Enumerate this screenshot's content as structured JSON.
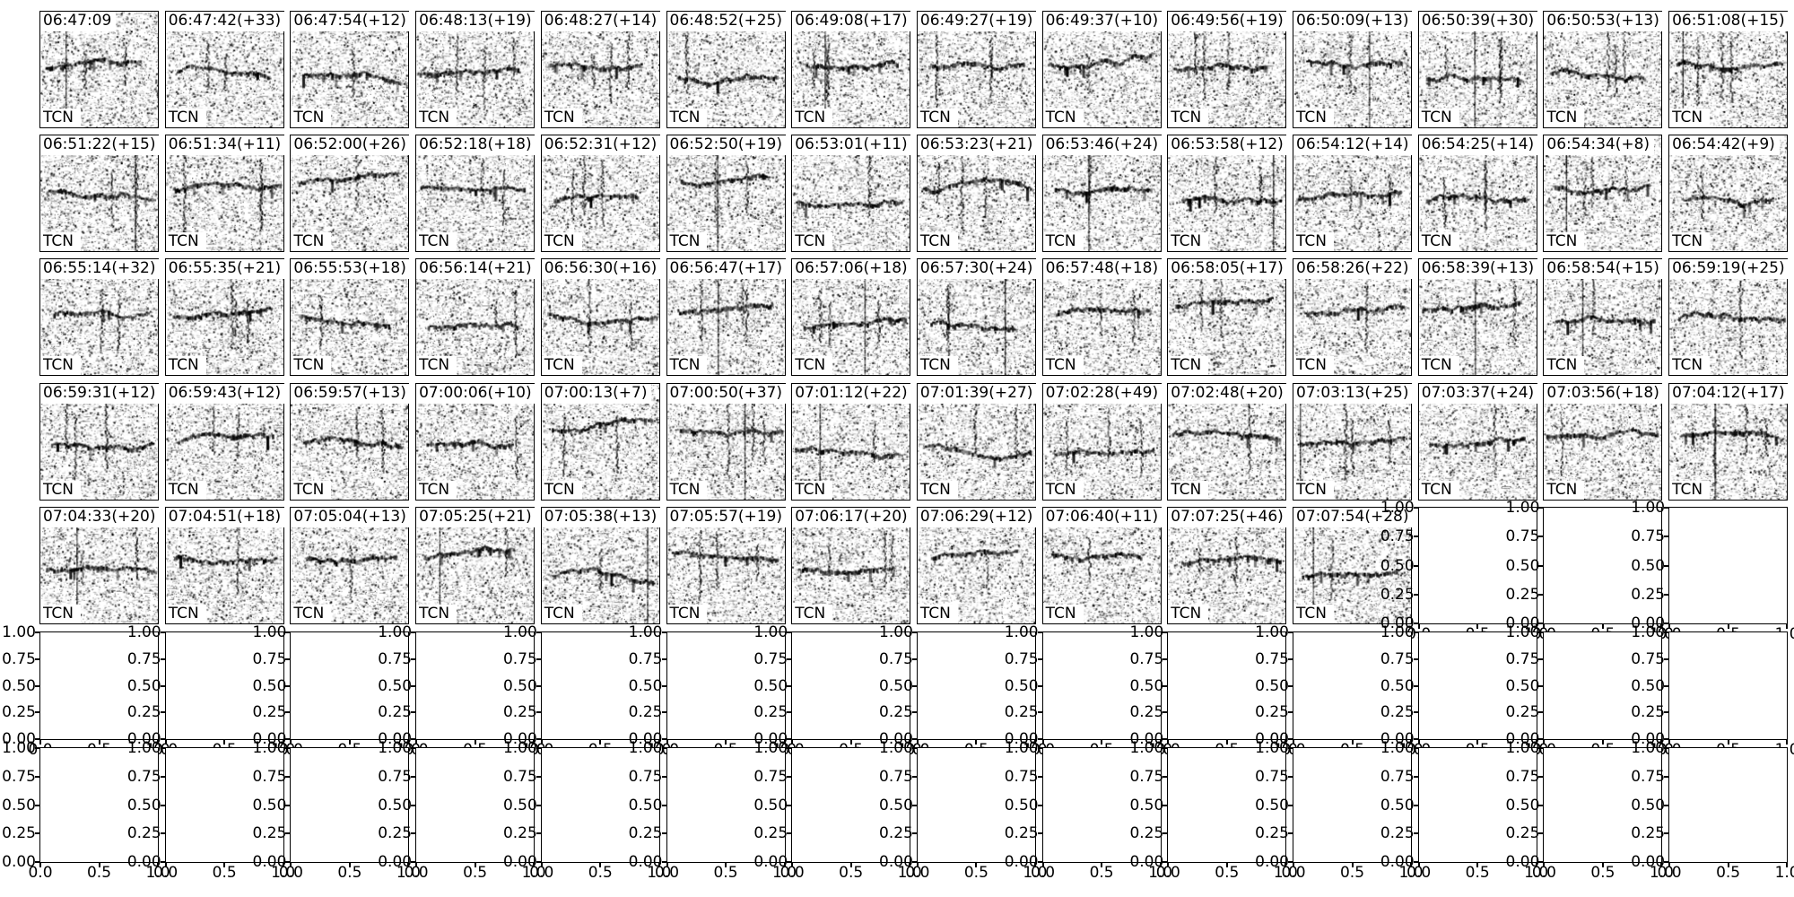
{
  "figure": {
    "background": "#ffffff",
    "text_color": "#000000",
    "model_label": "TCN",
    "grid_cols": 14,
    "grid_rows_total": 7,
    "spectrogram_rows": 5
  },
  "chart_data": {
    "type": "heatmap",
    "description": "Grid of 67 grayscale spectrogram detection thumbnails (14 columns x 5 rows, last row has 11), each titled with detection time and seconds since previous detection, each carrying an inset model label. Remaining 31 subplot slots are empty default axes with 0-1 tick labels.",
    "panel_label": "TCN",
    "panels": [
      "06:47:09",
      "06:47:42(+33)",
      "06:47:54(+12)",
      "06:48:13(+19)",
      "06:48:27(+14)",
      "06:48:52(+25)",
      "06:49:08(+17)",
      "06:49:27(+19)",
      "06:49:37(+10)",
      "06:49:56(+19)",
      "06:50:09(+13)",
      "06:50:39(+30)",
      "06:50:53(+13)",
      "06:51:08(+15)",
      "06:51:22(+15)",
      "06:51:34(+11)",
      "06:52:00(+26)",
      "06:52:18(+18)",
      "06:52:31(+12)",
      "06:52:50(+19)",
      "06:53:01(+11)",
      "06:53:23(+21)",
      "06:53:46(+24)",
      "06:53:58(+12)",
      "06:54:12(+14)",
      "06:54:25(+14)",
      "06:54:34(+8)",
      "06:54:42(+9)",
      "06:55:14(+32)",
      "06:55:35(+21)",
      "06:55:53(+18)",
      "06:56:14(+21)",
      "06:56:30(+16)",
      "06:56:47(+17)",
      "06:57:06(+18)",
      "06:57:30(+24)",
      "06:57:48(+18)",
      "06:58:05(+17)",
      "06:58:26(+22)",
      "06:58:39(+13)",
      "06:58:54(+15)",
      "06:59:19(+25)",
      "06:59:31(+12)",
      "06:59:43(+12)",
      "06:59:57(+13)",
      "07:00:06(+10)",
      "07:00:13(+7)",
      "07:00:50(+37)",
      "07:01:12(+22)",
      "07:01:39(+27)",
      "07:02:28(+49)",
      "07:02:48(+20)",
      "07:03:13(+25)",
      "07:03:37(+24)",
      "07:03:56(+18)",
      "07:04:12(+17)",
      "07:04:33(+20)",
      "07:04:51(+18)",
      "07:05:04(+13)",
      "07:05:25(+21)",
      "07:05:38(+13)",
      "07:05:57(+19)",
      "07:06:17(+20)",
      "07:06:29(+12)",
      "07:06:40(+11)",
      "07:07:25(+46)",
      "07:07:54(+28)"
    ],
    "panels_per_row": [
      14,
      14,
      14,
      14,
      11
    ],
    "empty_axes": {
      "count": 31,
      "ylim": [
        0,
        1
      ],
      "xlim": [
        0,
        1
      ],
      "yticks": [
        1.0,
        0.75,
        0.5,
        0.25,
        0.0
      ],
      "xticks": [
        0.0,
        0.5,
        1.0
      ],
      "y_tick_labels": [
        "1.00",
        "0.75",
        "0.50",
        "0.25",
        "0.00"
      ],
      "x_tick_labels": [
        "0.0",
        "0.5",
        "1.0"
      ]
    }
  }
}
